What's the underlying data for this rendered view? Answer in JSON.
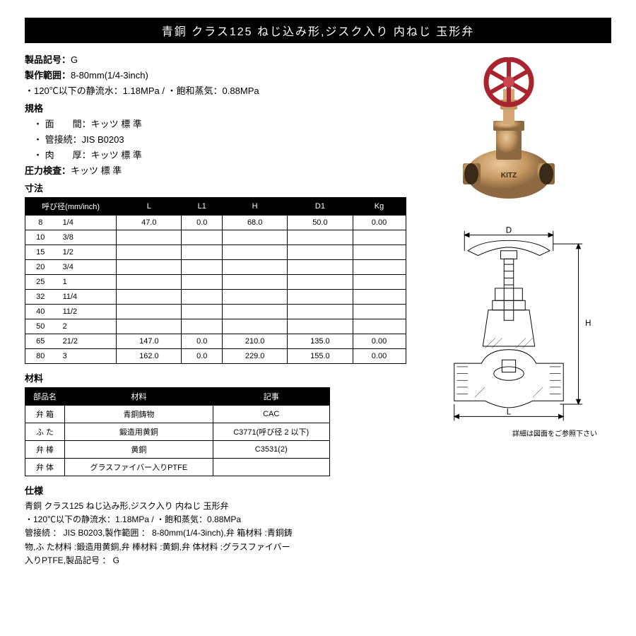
{
  "title": "青銅 クラス125 ねじ込み形,ジスク入り 内ねじ 玉形弁",
  "product_code_label": "製品記号：",
  "product_code": "G",
  "range_label": "製作範囲：",
  "range": "8-80mm(1/4-3inch)",
  "temp_line": "・120℃以下の静流水：1.18MPa / ・飽和蒸気：0.88MPa",
  "std_label": "規格",
  "std_items": [
    "・ 面　　間：キッツ 標 準",
    "・ 管接続：JIS B0203",
    "・ 肉　　厚：キッツ 標 準"
  ],
  "pressure_label": "圧力検査：",
  "pressure_val": "キッツ 標 準",
  "dim_label": "寸法",
  "dim_table": {
    "headers": [
      "呼び径(mm/inch)",
      "L",
      "L1",
      "H",
      "D1",
      "Kg"
    ],
    "rows": [
      [
        "8",
        "1/4",
        "47.0",
        "0.0",
        "68.0",
        "50.0",
        "0.00"
      ],
      [
        "10",
        "3/8",
        "",
        "",
        "",
        "",
        ""
      ],
      [
        "15",
        "1/2",
        "",
        "",
        "",
        "",
        ""
      ],
      [
        "20",
        "3/4",
        "",
        "",
        "",
        "",
        ""
      ],
      [
        "25",
        "1",
        "",
        "",
        "",
        "",
        ""
      ],
      [
        "32",
        "11/4",
        "",
        "",
        "",
        "",
        ""
      ],
      [
        "40",
        "11/2",
        "",
        "",
        "",
        "",
        ""
      ],
      [
        "50",
        "2",
        "",
        "",
        "",
        "",
        ""
      ],
      [
        "65",
        "21/2",
        "147.0",
        "0.0",
        "210.0",
        "135.0",
        "0.00"
      ],
      [
        "80",
        "3",
        "162.0",
        "0.0",
        "229.0",
        "155.0",
        "0.00"
      ]
    ]
  },
  "mat_label": "材料",
  "mat_table": {
    "headers": [
      "部品名",
      "材料",
      "記事"
    ],
    "rows": [
      [
        "弁 箱",
        "青銅鋳物",
        "CAC"
      ],
      [
        "ふ た",
        "鍛造用黄銅",
        "C3771(呼び径 2 以下)"
      ],
      [
        "弁 棒",
        "黄銅",
        "C3531(2)"
      ],
      [
        "弁 体",
        "グラスファイバー入りPTFE",
        ""
      ]
    ]
  },
  "spec_label": "仕様",
  "spec_text": [
    "青銅 クラス125 ねじ込み形,ジスク入り 内ねじ 玉形弁",
    "・120℃以下の静流水：1.18MPa / ・飽和蒸気：0.88MPa",
    "管接続 ： JIS B0203,製作範囲 ： 8-80mm(1/4-3inch),弁 箱材料 :青銅鋳",
    "物,ふ た材料 :鍛造用黄銅,弁 棒材料 :黄銅,弁 体材料 :グラスファイバー",
    "入りPTFE,製品記号 ： G"
  ],
  "diag_note": "詳細は図面をご参照下さい",
  "brand": "KITZ",
  "colors": {
    "bronze1": "#b5895a",
    "bronze2": "#d4a876",
    "bronze3": "#8d6942",
    "wheel": "#a8242e"
  }
}
